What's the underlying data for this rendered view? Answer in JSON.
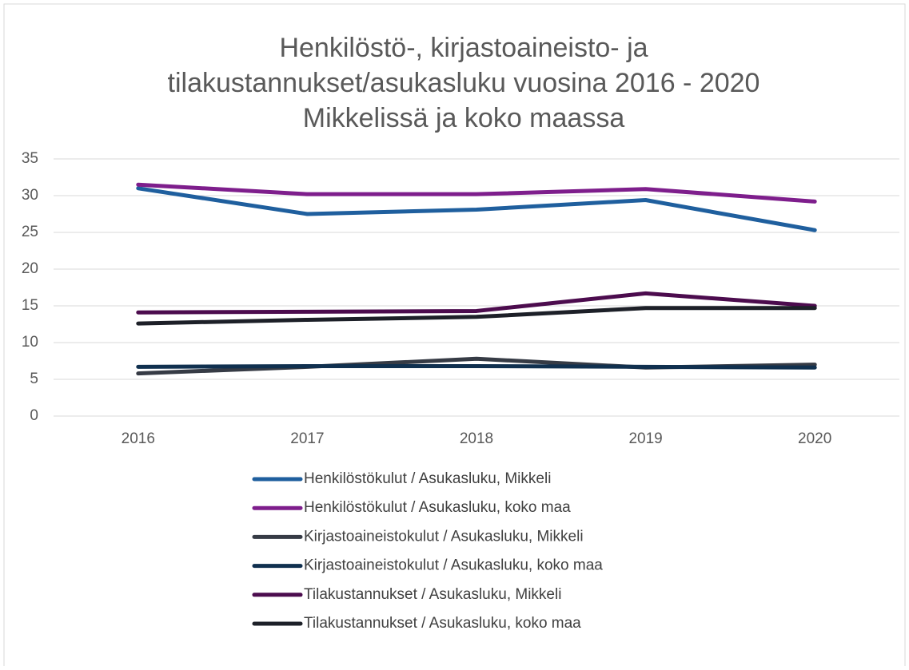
{
  "chart_data": {
    "type": "line",
    "title": [
      "Henkilöstö-, kirjastoaineisto- ja",
      "tilakustannukset/asukasluku vuosina 2016 - 2020",
      "Mikkelissä ja koko maassa"
    ],
    "categories": [
      "2016",
      "2017",
      "2018",
      "2019",
      "2020"
    ],
    "series": [
      {
        "name": "Henkilöstökulut / Asukasluku, Mikkeli",
        "color": "#1f5f9e",
        "values": [
          31.0,
          27.5,
          28.1,
          29.4,
          25.3
        ]
      },
      {
        "name": "Henkilöstökulut / Asukasluku, koko maa",
        "color": "#7e1e8c",
        "values": [
          31.5,
          30.2,
          30.2,
          30.9,
          29.2
        ]
      },
      {
        "name": "Kirjastoaineistokulut / Asukasluku, Mikkeli",
        "color": "#363b45",
        "values": [
          5.8,
          6.7,
          7.8,
          6.6,
          7.0
        ]
      },
      {
        "name": "Kirjastoaineistokulut / Asukasluku, koko maa",
        "color": "#10304f",
        "values": [
          6.7,
          6.8,
          6.8,
          6.7,
          6.6
        ]
      },
      {
        "name": "Tilakustannukset / Asukasluku, Mikkeli",
        "color": "#4c0c4e",
        "values": [
          14.1,
          14.2,
          14.3,
          16.7,
          15.0
        ]
      },
      {
        "name": "Tilakustannukset / Asukasluku, koko maa",
        "color": "#1d2028",
        "values": [
          12.6,
          13.1,
          13.5,
          14.7,
          14.7
        ]
      }
    ],
    "ylim": [
      0,
      35
    ],
    "yticks": [
      0,
      5,
      10,
      15,
      20,
      25,
      30,
      35
    ],
    "grid": true,
    "legend": "bottom"
  }
}
